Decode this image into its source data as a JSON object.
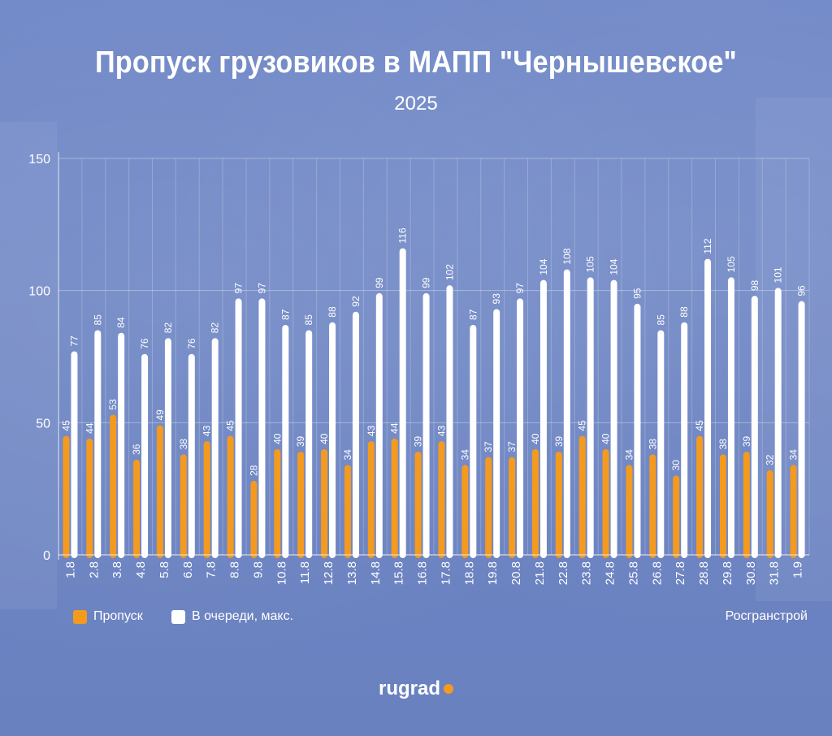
{
  "title": "Пропуск грузовиков в МАПП \"Чернышевское\"",
  "subtitle": "2025",
  "source": "Росгранстрой",
  "logo": "rugrad",
  "colors": {
    "passed": "#f39a1f",
    "queue": "#ffffff",
    "background": "#6d84c4"
  },
  "chart_data": {
    "type": "bar",
    "title": "Пропуск грузовиков в МАПП \"Чернышевское\"",
    "subtitle": "2025",
    "categories": [
      "1.8",
      "2.8",
      "3.8",
      "4.8",
      "5.8",
      "6.8",
      "7.8",
      "8.8",
      "9.8",
      "10.8",
      "11.8",
      "12.8",
      "13.8",
      "14.8",
      "15.8",
      "16.8",
      "17.8",
      "18.8",
      "19.8",
      "20.8",
      "21.8",
      "22.8",
      "23.8",
      "24.8",
      "25.8",
      "26.8",
      "27.8",
      "28.8",
      "29.8",
      "30.8",
      "31.8",
      "1.9"
    ],
    "series": [
      {
        "name": "Пропуск",
        "color": "#f39a1f",
        "values": [
          45,
          44,
          53,
          36,
          49,
          38,
          43,
          45,
          28,
          40,
          39,
          40,
          34,
          43,
          44,
          39,
          43,
          34,
          37,
          37,
          40,
          39,
          45,
          40,
          34,
          38,
          30,
          45,
          38,
          39,
          32,
          34
        ]
      },
      {
        "name": "В очереди, макс.",
        "color": "#ffffff",
        "values": [
          77,
          85,
          84,
          76,
          82,
          76,
          82,
          97,
          97,
          87,
          85,
          88,
          92,
          99,
          116,
          99,
          102,
          87,
          93,
          97,
          104,
          108,
          105,
          104,
          95,
          85,
          88,
          112,
          105,
          98,
          101,
          96
        ]
      }
    ],
    "yticks": [
      0,
      50,
      100,
      150
    ],
    "ylim": [
      0,
      150
    ],
    "xlabel": "",
    "ylabel": "",
    "grid": true,
    "legend": "bottom-left"
  }
}
